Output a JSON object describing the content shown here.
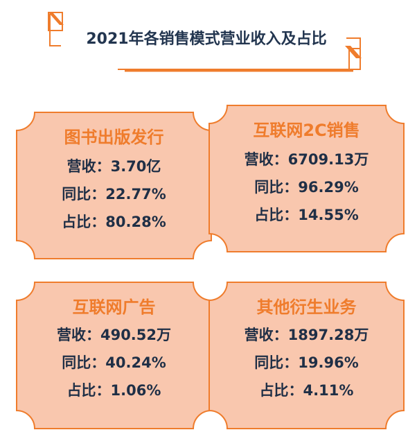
{
  "title": "2021年各销售模式营业收入及占比",
  "colors": {
    "accent": "#ef7c2c",
    "card_fill": "#f9c7ae",
    "card_stroke": "#ef7c2c",
    "title_text": "#22354f",
    "body_text": "#1f2f46"
  },
  "cards": [
    {
      "title": "图书出版发行",
      "lines": [
        "营收：3.70亿",
        "同比：22.77%",
        "占比：80.28%"
      ]
    },
    {
      "title": "互联网2C销售",
      "lines": [
        "营收：6709.13万",
        "同比：96.29%",
        "占比：14.55%"
      ]
    },
    {
      "title": "互联网广告",
      "lines": [
        "营收：490.52万",
        "同比：40.24%",
        "占比：1.06%"
      ]
    },
    {
      "title": "其他衍生业务",
      "lines": [
        "营收：1897.28万",
        "同比：19.96%",
        "占比：4.11%"
      ]
    }
  ]
}
